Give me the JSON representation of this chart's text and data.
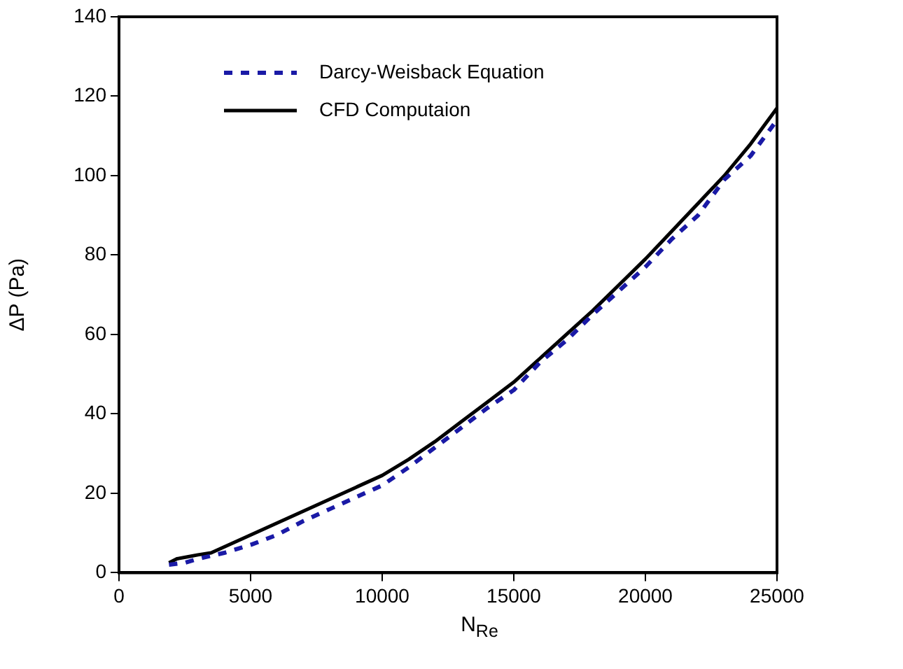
{
  "chart_data": {
    "type": "line",
    "xlabel": "N$_{Re}$",
    "ylabel": "ΔP (Pa)",
    "xlim": [
      0,
      25000
    ],
    "xticks": [
      0,
      5000,
      10000,
      15000,
      20000,
      25000
    ],
    "ylim": [
      0,
      140
    ],
    "yticks": [
      0,
      20,
      40,
      60,
      80,
      100,
      120,
      140
    ],
    "grid": false,
    "legend": "top left",
    "marker": "none",
    "series": [
      {
        "name": "Darcy-Weisback Equation",
        "color": "#1a1aa6",
        "line_style": "dashed",
        "x": [
          1900,
          2500,
          3000,
          4000,
          5000,
          6000,
          7000,
          8000,
          9000,
          10000,
          11000,
          12000,
          13000,
          14000,
          15000,
          16000,
          17000,
          18000,
          19000,
          20000,
          21000,
          22000,
          23000,
          24000,
          25000
        ],
        "values": [
          2,
          2.5,
          3.5,
          5,
          7,
          9.5,
          13,
          16,
          19,
          22,
          26.5,
          31.5,
          36.5,
          41.5,
          46,
          53,
          58.5,
          65,
          71,
          77,
          84,
          90,
          99,
          105,
          114
        ]
      },
      {
        "name": "CFD Computaion",
        "color": "#000000",
        "line_style": "solid",
        "x": [
          1900,
          2200,
          2600,
          3000,
          3500,
          4000,
          5000,
          6000,
          7000,
          8000,
          9000,
          10000,
          11000,
          12000,
          13000,
          14000,
          15000,
          16000,
          17000,
          18000,
          19000,
          20000,
          21000,
          22000,
          23000,
          24000,
          25000
        ],
        "values": [
          2.5,
          3.5,
          4,
          4.5,
          5,
          6.5,
          9.5,
          12.5,
          15.5,
          18.5,
          21.5,
          24.5,
          28.5,
          33,
          38,
          43,
          48,
          54,
          60,
          66,
          72.5,
          79,
          86,
          93,
          100,
          108,
          117
        ]
      }
    ]
  }
}
